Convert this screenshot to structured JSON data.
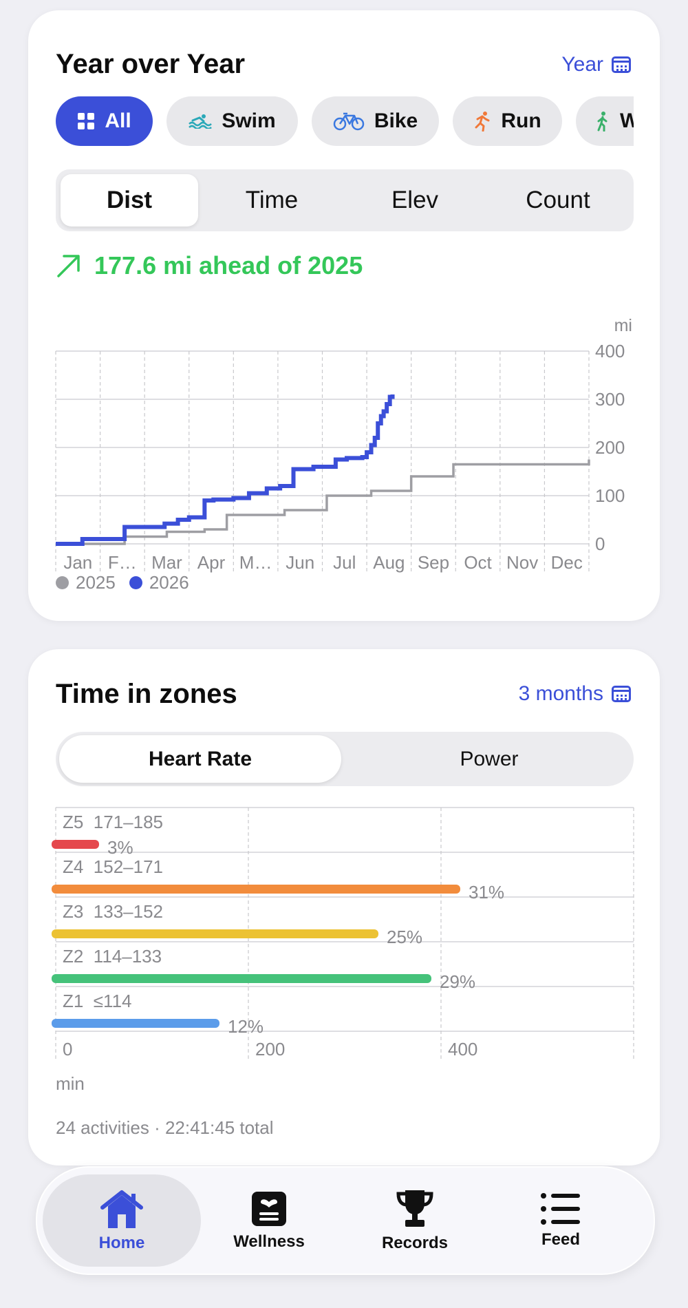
{
  "yoy": {
    "title": "Year over Year",
    "range_label": "Year",
    "sports": [
      {
        "label": "All",
        "icon": "grid-icon"
      },
      {
        "label": "Swim",
        "icon": "swim-icon"
      },
      {
        "label": "Bike",
        "icon": "bike-icon"
      },
      {
        "label": "Run",
        "icon": "run-icon"
      },
      {
        "label": "W",
        "icon": "walk-icon"
      }
    ],
    "metrics": [
      "Dist",
      "Time",
      "Elev",
      "Count"
    ],
    "ahead_text": "177.6 mi ahead of 2025",
    "colors": {
      "series_2025": "#9e9ea3",
      "series_2026": "#3b4fd8",
      "ahead": "#34c759"
    }
  },
  "chart_data": [
    {
      "type": "line",
      "unit_label": "mi",
      "x_tick_labels": [
        "Jan",
        "F…",
        "Mar",
        "Apr",
        "M…",
        "Jun",
        "Jul",
        "Aug",
        "Sep",
        "Oct",
        "Nov",
        "Dec"
      ],
      "xlim": [
        0,
        12
      ],
      "ylim": [
        0,
        400
      ],
      "y_ticks": [
        0,
        100,
        200,
        300,
        400
      ],
      "grid": true,
      "legend_position": "bottom-left",
      "series": [
        {
          "name": "2025",
          "color": "#9e9ea3",
          "step": true,
          "x": [
            0,
            1.55,
            2.5,
            3.35,
            3.85,
            5.15,
            6.1,
            7.1,
            8.0,
            8.95,
            12.0
          ],
          "y": [
            0,
            15,
            25,
            30,
            60,
            70,
            100,
            110,
            140,
            165,
            175
          ]
        },
        {
          "name": "2026",
          "color": "#3b4fd8",
          "step": true,
          "x": [
            0,
            0.6,
            1.55,
            2.45,
            2.75,
            3.0,
            3.35,
            3.55,
            4.0,
            4.35,
            4.75,
            5.05,
            5.35,
            5.8,
            6.3,
            6.55,
            6.9,
            7.0,
            7.1,
            7.18,
            7.25,
            7.32,
            7.38,
            7.45,
            7.52,
            7.58
          ],
          "y": [
            0,
            10,
            35,
            42,
            50,
            55,
            90,
            92,
            95,
            105,
            115,
            120,
            155,
            160,
            175,
            178,
            180,
            190,
            205,
            220,
            250,
            265,
            275,
            290,
            305,
            310
          ]
        }
      ]
    },
    {
      "type": "bar",
      "orientation": "horizontal",
      "unit_label": "min",
      "x_ticks": [
        0,
        200,
        400
      ],
      "xlim": [
        0,
        600
      ],
      "grid": true,
      "categories": [
        "Z5  171–185",
        "Z4  152–171",
        "Z3  133–152",
        "Z2  114–133",
        "Z1  ≤114"
      ],
      "values": [
        45,
        420,
        335,
        390,
        170
      ],
      "value_labels": [
        "3%",
        "31%",
        "25%",
        "29%",
        "12%"
      ],
      "colors": [
        "#e5484d",
        "#f28c3c",
        "#ecc233",
        "#45c27a",
        "#5b9cea"
      ]
    }
  ],
  "zones": {
    "title": "Time in zones",
    "range_label": "3 months",
    "modes": [
      "Heart Rate",
      "Power"
    ],
    "unit_label": "min",
    "summary": "24 activities · 22:41:45 total"
  },
  "tabbar": {
    "items": [
      {
        "label": "Home",
        "icon": "home-icon"
      },
      {
        "label": "Wellness",
        "icon": "wellness-icon"
      },
      {
        "label": "Records",
        "icon": "trophy-icon"
      },
      {
        "label": "Feed",
        "icon": "list-icon"
      }
    ]
  }
}
